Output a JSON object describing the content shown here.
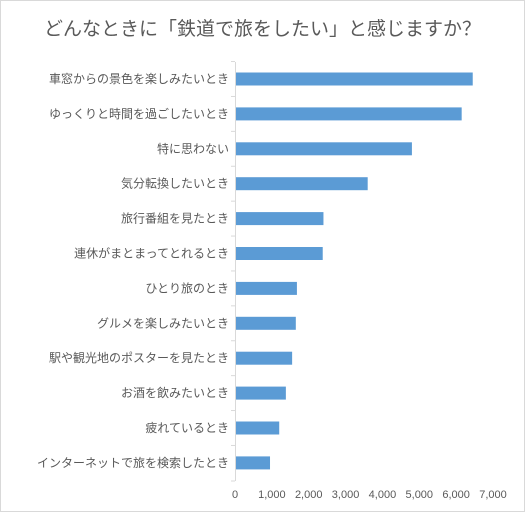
{
  "chart_data": {
    "type": "bar",
    "orientation": "horizontal",
    "title": "どんなときに「鉄道で旅をしたい」と感じますか？",
    "categories": [
      "車窓からの景色を楽しみたいとき",
      "ゆっくりと時間を過ごしたいとき",
      "特に思わない",
      "気分転換したいとき",
      "旅行番組を見たとき",
      "連休がまとまってとれるとき",
      "ひとり旅のとき",
      "グルメを楽しみたいとき",
      "駅や観光地のポスターを見たとき",
      "お酒を飲みたいとき",
      "疲れているとき",
      "インターネットで旅を検索したとき"
    ],
    "values": [
      6450,
      6150,
      4800,
      3600,
      2400,
      2380,
      1680,
      1650,
      1550,
      1380,
      1200,
      950
    ],
    "xlim": [
      0,
      7000
    ],
    "xticks": [
      "0",
      "1,000",
      "2,000",
      "3,000",
      "4,000",
      "5,000",
      "6,000",
      "7,000"
    ],
    "bar_color": "#5b9bd5",
    "grid": false,
    "legend": "none"
  }
}
